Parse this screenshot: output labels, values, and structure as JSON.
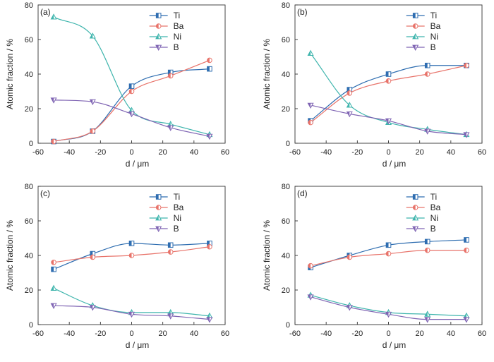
{
  "chart_data": [
    {
      "type": "line",
      "panel_label": "(a)",
      "xlabel": "d / μm",
      "ylabel": "Atomic fraction / %",
      "xlim": [
        -60,
        60
      ],
      "ylim": [
        0,
        80
      ],
      "xticks": [
        -60,
        -40,
        -20,
        0,
        20,
        40,
        60
      ],
      "yticks": [
        0,
        20,
        40,
        60,
        80
      ],
      "x": [
        -50,
        -25,
        0,
        25,
        50
      ],
      "legend_position": "top-right",
      "series": [
        {
          "name": "Ti",
          "color": "#2e6db0",
          "marker": "square-half",
          "values": [
            1,
            7,
            33,
            41,
            43
          ]
        },
        {
          "name": "Ba",
          "color": "#e8736a",
          "marker": "circle-half",
          "values": [
            1,
            7,
            30,
            39,
            48
          ]
        },
        {
          "name": "Ni",
          "color": "#3fb5ad",
          "marker": "triangle-up",
          "values": [
            73,
            62,
            19,
            11,
            5
          ]
        },
        {
          "name": "B",
          "color": "#7f64b3",
          "marker": "triangle-down",
          "values": [
            25,
            24,
            17,
            9,
            4
          ]
        }
      ]
    },
    {
      "type": "line",
      "panel_label": "(b)",
      "xlabel": "d / μm",
      "ylabel": "Atomic fraction / %",
      "xlim": [
        -60,
        60
      ],
      "ylim": [
        0,
        80
      ],
      "xticks": [
        -60,
        -40,
        -20,
        0,
        20,
        40,
        60
      ],
      "yticks": [
        0,
        20,
        40,
        60,
        80
      ],
      "x": [
        -50,
        -25,
        0,
        25,
        50
      ],
      "legend_position": "top-right",
      "series": [
        {
          "name": "Ti",
          "color": "#2e6db0",
          "marker": "square-half",
          "values": [
            13,
            31,
            40,
            45,
            45
          ]
        },
        {
          "name": "Ba",
          "color": "#e8736a",
          "marker": "circle-half",
          "values": [
            12,
            29,
            36,
            40,
            45
          ]
        },
        {
          "name": "Ni",
          "color": "#3fb5ad",
          "marker": "triangle-up",
          "values": [
            52,
            22,
            12,
            8,
            5
          ]
        },
        {
          "name": "B",
          "color": "#7f64b3",
          "marker": "triangle-down",
          "values": [
            22,
            17,
            13,
            7,
            5
          ]
        }
      ]
    },
    {
      "type": "line",
      "panel_label": "(c)",
      "xlabel": "d / μm",
      "ylabel": "Atomic fraction / %",
      "xlim": [
        -60,
        60
      ],
      "ylim": [
        0,
        80
      ],
      "xticks": [
        -60,
        -40,
        -20,
        0,
        20,
        40,
        60
      ],
      "yticks": [
        0,
        20,
        40,
        60,
        80
      ],
      "x": [
        -50,
        -25,
        0,
        25,
        50
      ],
      "legend_position": "top-right",
      "series": [
        {
          "name": "Ti",
          "color": "#2e6db0",
          "marker": "square-half",
          "values": [
            32,
            41,
            47,
            46,
            47
          ]
        },
        {
          "name": "Ba",
          "color": "#e8736a",
          "marker": "circle-half",
          "values": [
            36,
            39,
            40,
            42,
            45
          ]
        },
        {
          "name": "Ni",
          "color": "#3fb5ad",
          "marker": "triangle-up",
          "values": [
            21,
            11,
            7,
            7,
            5
          ]
        },
        {
          "name": "B",
          "color": "#7f64b3",
          "marker": "triangle-down",
          "values": [
            11,
            10,
            6,
            5,
            3
          ]
        }
      ]
    },
    {
      "type": "line",
      "panel_label": "(d)",
      "xlabel": "d / μm",
      "ylabel": "Atomic fraction / %",
      "xlim": [
        -60,
        60
      ],
      "ylim": [
        0,
        80
      ],
      "xticks": [
        -60,
        -40,
        -20,
        0,
        20,
        40,
        60
      ],
      "yticks": [
        0,
        20,
        40,
        60,
        80
      ],
      "x": [
        -50,
        -25,
        0,
        25,
        50
      ],
      "legend_position": "top-right",
      "series": [
        {
          "name": "Ti",
          "color": "#2e6db0",
          "marker": "square-half",
          "values": [
            33,
            40,
            46,
            48,
            49
          ]
        },
        {
          "name": "Ba",
          "color": "#e8736a",
          "marker": "circle-half",
          "values": [
            34,
            39,
            41,
            43,
            43
          ]
        },
        {
          "name": "Ni",
          "color": "#3fb5ad",
          "marker": "triangle-up",
          "values": [
            17,
            11,
            7,
            6,
            5
          ]
        },
        {
          "name": "B",
          "color": "#7f64b3",
          "marker": "triangle-down",
          "values": [
            16,
            10,
            6,
            3,
            3
          ]
        }
      ]
    }
  ]
}
